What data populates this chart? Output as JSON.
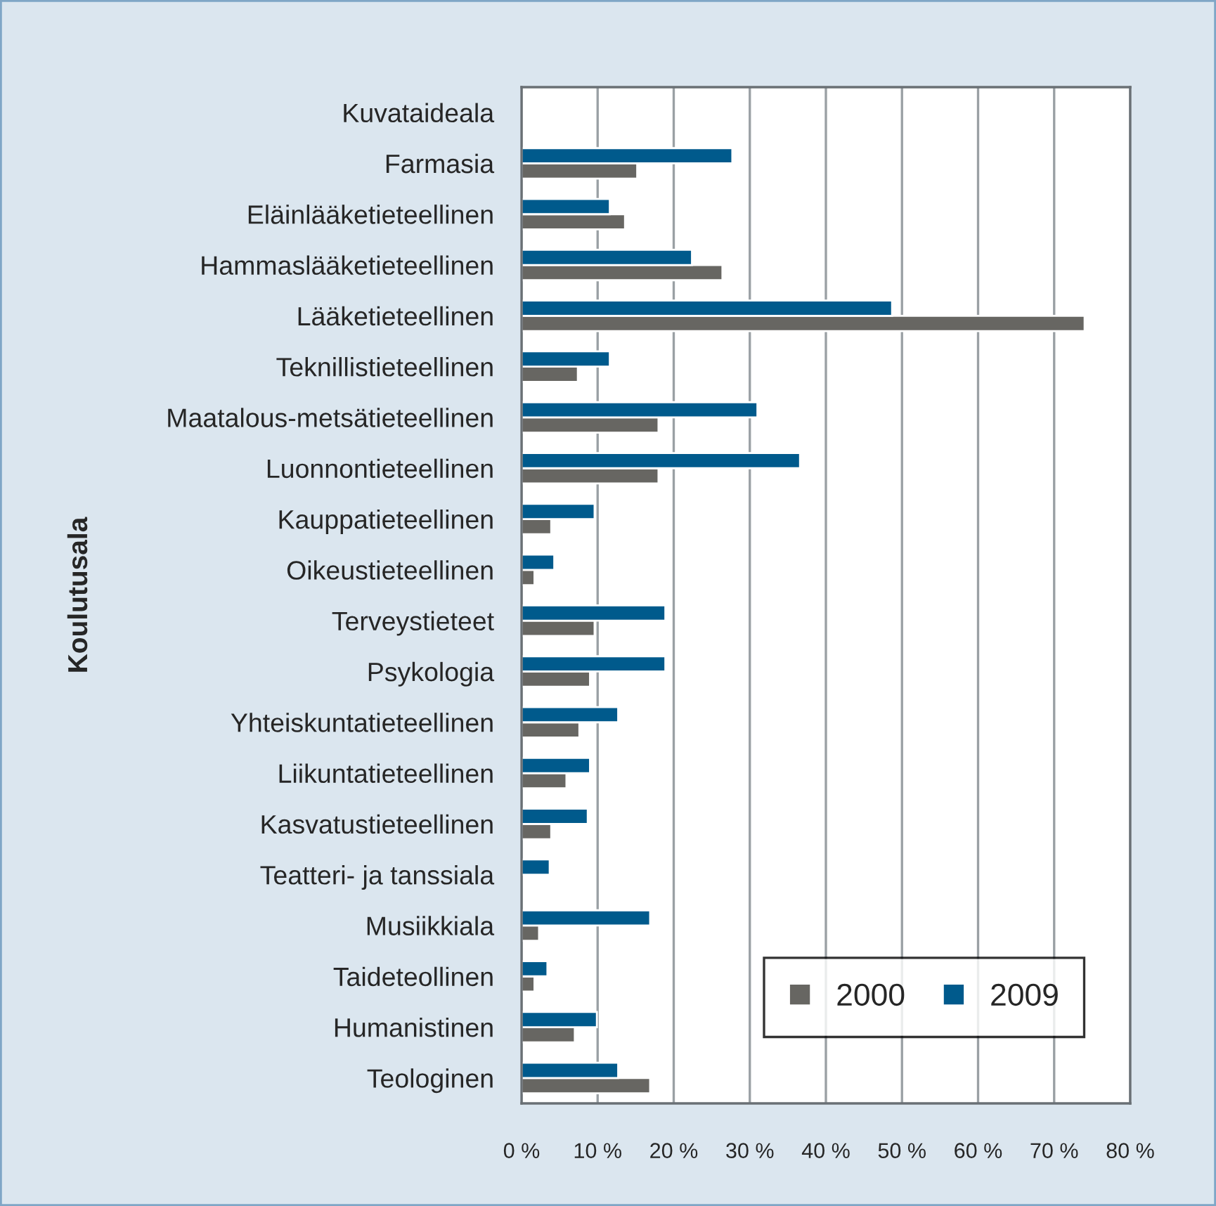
{
  "chart_data": {
    "type": "bar",
    "orientation": "horizontal",
    "ylabel": "Koulutusala",
    "categories": [
      "Kuvataideala",
      "Farmasia",
      "Eläinlääketieteellinen",
      "Hammaslääketieteellinen",
      "Lääketieteellinen",
      "Teknillistieteellinen",
      "Maatalous-metsätieteellinen",
      "Luonnontieteellinen",
      "Kauppatieteellinen",
      "Oikeustieteellinen",
      "Terveystieteet",
      "Psykologia",
      "Yhteiskuntatieteellinen",
      "Liikuntatieteellinen",
      "Kasvatustieteellinen",
      "Teatteri- ja tanssiala",
      "Musiikkiala",
      "Taideteollinen",
      "Humanistinen",
      "Teologinen"
    ],
    "series": [
      {
        "name": "2000",
        "color": "#676662",
        "values": [
          null,
          15.2,
          13.6,
          26.4,
          74.0,
          7.4,
          18.0,
          18.0,
          3.9,
          1.7,
          9.6,
          9.0,
          7.6,
          5.9,
          3.9,
          null,
          2.3,
          1.7,
          7.0,
          16.9
        ]
      },
      {
        "name": "2009",
        "color": "#005a8c",
        "values": [
          null,
          27.7,
          11.6,
          22.4,
          48.7,
          11.6,
          31.0,
          36.6,
          9.6,
          4.3,
          18.9,
          18.9,
          12.7,
          9.0,
          8.7,
          3.7,
          16.9,
          3.4,
          9.9,
          12.7
        ]
      }
    ],
    "xlim": [
      0,
      80
    ],
    "xticks": [
      {
        "value": 0,
        "label": "0 %"
      },
      {
        "value": 10,
        "label": "10 %"
      },
      {
        "value": 20,
        "label": "20 %"
      },
      {
        "value": 30,
        "label": "30 %"
      },
      {
        "value": 40,
        "label": "40 %"
      },
      {
        "value": 50,
        "label": "50 %"
      },
      {
        "value": 60,
        "label": "60 %"
      },
      {
        "value": 70,
        "label": "70 %"
      },
      {
        "value": 80,
        "label": "80 %"
      }
    ],
    "grid": "x",
    "legend": "bottom right"
  }
}
